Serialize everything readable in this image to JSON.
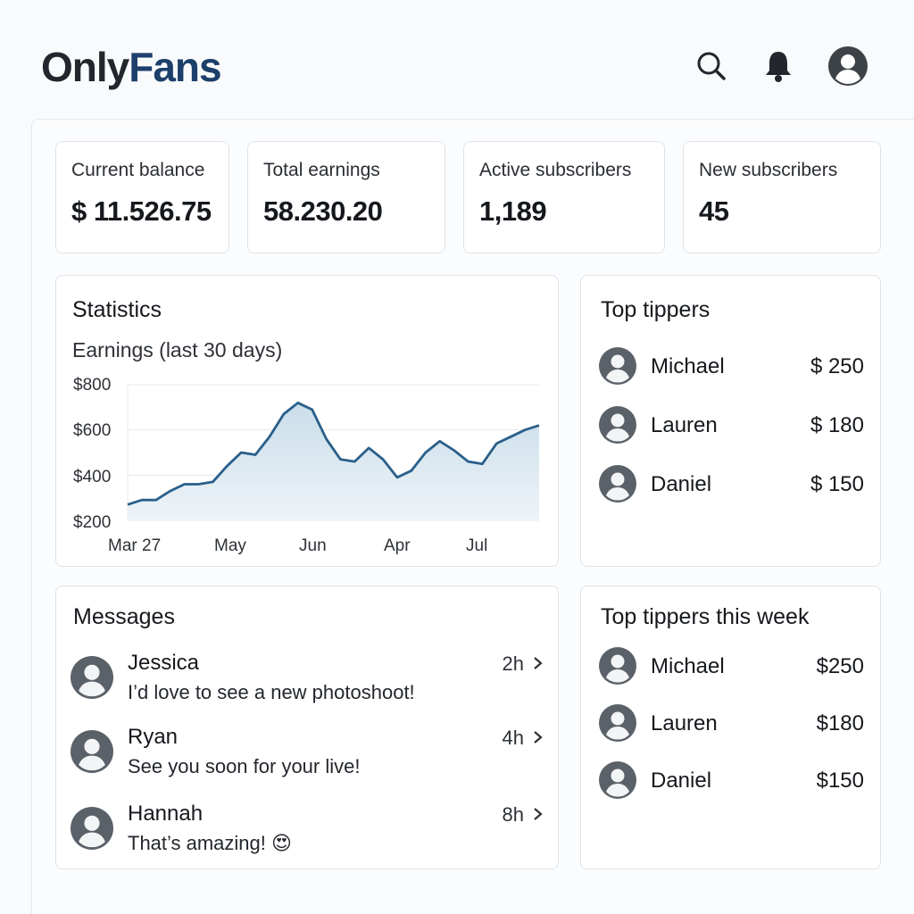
{
  "header": {
    "logo_part1": "Only",
    "logo_part2": "Fans",
    "icons": [
      "search-icon",
      "bell-icon",
      "profile-avatar-icon"
    ]
  },
  "stats": [
    {
      "label": "Current balance",
      "value": "$ 11.526.75"
    },
    {
      "label": "Total earnings",
      "value": "58.230.20"
    },
    {
      "label": "Active subscribers",
      "value": "1,189"
    },
    {
      "label": "New subscribers",
      "value": "45"
    }
  ],
  "statistics": {
    "title": "Statistics",
    "subtitle": "Earnings (last 30 days)"
  },
  "chart_data": {
    "type": "area",
    "title": "Earnings (last 30 days)",
    "xlabel": "",
    "ylabel": "",
    "y_ticks": [
      "$800",
      "$600",
      "$400",
      "$200"
    ],
    "x_ticks": [
      "Mar 27",
      "May",
      "Jun",
      "Apr",
      "Jul"
    ],
    "ylim": [
      200,
      800
    ],
    "grid": true,
    "series": [
      {
        "values": [
          270,
          290,
          290,
          330,
          360,
          360,
          370,
          440,
          500,
          490,
          570,
          670,
          720,
          690,
          560,
          470,
          460,
          520,
          470,
          390,
          420,
          500,
          550,
          510,
          460,
          450,
          540,
          570,
          600,
          620
        ]
      }
    ],
    "colors": {
      "line": "#2a5f8a",
      "fill_top": "#c9dde9",
      "fill_bottom": "#eef4f8"
    }
  },
  "top_tippers": {
    "title": "Top tippers",
    "rows": [
      {
        "name": "Michael",
        "amount": "$ 250"
      },
      {
        "name": "Lauren",
        "amount": "$ 180"
      },
      {
        "name": "Daniel",
        "amount": "$ 150"
      }
    ]
  },
  "messages": {
    "title": "Messages",
    "rows": [
      {
        "name": "Jessica",
        "text": "I’d love to see a new photoshoot!",
        "time": "2h"
      },
      {
        "name": "Ryan",
        "text": "See you soon for your live!",
        "time": "4h"
      },
      {
        "name": "Hannah",
        "text": "That’s amazing! 😍",
        "time": "8h"
      }
    ]
  },
  "top_tippers_week": {
    "title": "Top tippers this week",
    "rows": [
      {
        "name": "Michael",
        "amount": "$250"
      },
      {
        "name": "Lauren",
        "amount": "$180"
      },
      {
        "name": "Daniel",
        "amount": "$150"
      }
    ]
  }
}
